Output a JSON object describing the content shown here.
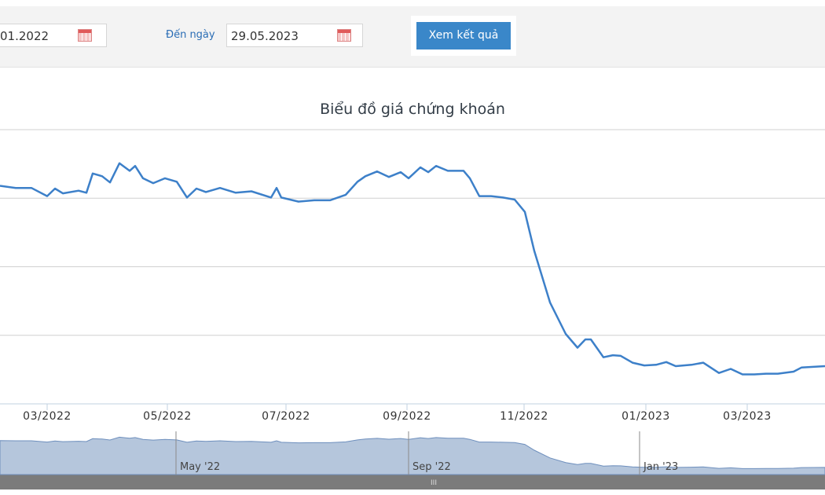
{
  "toolbar": {
    "from_value": "01.2022",
    "to_label": "Đến ngày",
    "to_value": "29.05.2023",
    "button": "Xem kết quả"
  },
  "chart_data": {
    "type": "line",
    "title": "Biểu đồ giá chứng khoán",
    "color": "#3d80c9",
    "x": [
      0,
      8,
      16,
      24,
      28,
      32,
      40,
      44,
      47.2,
      52,
      56,
      60.8,
      66,
      68.8,
      72.8,
      78,
      84,
      90,
      95.2,
      100,
      104.8,
      112,
      120,
      128,
      138,
      140.8,
      143.2,
      152,
      160,
      168,
      176,
      182,
      186,
      192,
      198,
      204,
      208,
      214,
      218,
      222,
      228,
      236,
      239.2,
      244,
      250,
      256,
      262,
      267.2,
      272,
      280,
      288,
      294,
      298,
      300.8,
      307.2,
      312,
      316,
      322,
      328,
      334,
      339.2,
      344,
      352,
      358,
      366,
      372,
      378,
      384,
      390,
      396,
      404,
      408,
      420
    ],
    "values": [
      3.18,
      3.15,
      3.15,
      3.03,
      3.14,
      3.07,
      3.11,
      3.08,
      3.36,
      3.32,
      3.23,
      3.51,
      3.4,
      3.47,
      3.29,
      3.22,
      3.29,
      3.24,
      3.01,
      3.14,
      3.09,
      3.15,
      3.08,
      3.1,
      3.01,
      3.15,
      3.01,
      2.95,
      2.97,
      2.97,
      3.05,
      3.24,
      3.32,
      3.39,
      3.31,
      3.38,
      3.29,
      3.45,
      3.38,
      3.47,
      3.4,
      3.4,
      3.29,
      3.03,
      3.03,
      3.01,
      2.98,
      2.8,
      2.23,
      1.48,
      1.02,
      0.82,
      0.94,
      0.94,
      0.68,
      0.71,
      0.7,
      0.6,
      0.56,
      0.57,
      0.61,
      0.55,
      0.57,
      0.6,
      0.45,
      0.51,
      0.43,
      0.43,
      0.44,
      0.44,
      0.47,
      0.53,
      0.55
    ],
    "xlim": [
      0,
      420
    ],
    "ylim": [
      0,
      4
    ],
    "y_grid": [
      1,
      2,
      3,
      4
    ],
    "xticks": [
      {
        "value": 24,
        "label": "03/2022"
      },
      {
        "value": 85.2,
        "label": "05/2022"
      },
      {
        "value": 145.6,
        "label": "07/2022"
      },
      {
        "value": 207.2,
        "label": "09/2022"
      },
      {
        "value": 266.8,
        "label": "11/2022"
      },
      {
        "value": 328.8,
        "label": "01/2023"
      },
      {
        "value": 380.4,
        "label": "03/2023"
      }
    ],
    "navigator": {
      "xticks": [
        {
          "value": 89.6,
          "label": "May '22"
        },
        {
          "value": 208,
          "label": "Sep '22"
        },
        {
          "value": 325.6,
          "label": "Jan '23"
        }
      ]
    }
  }
}
